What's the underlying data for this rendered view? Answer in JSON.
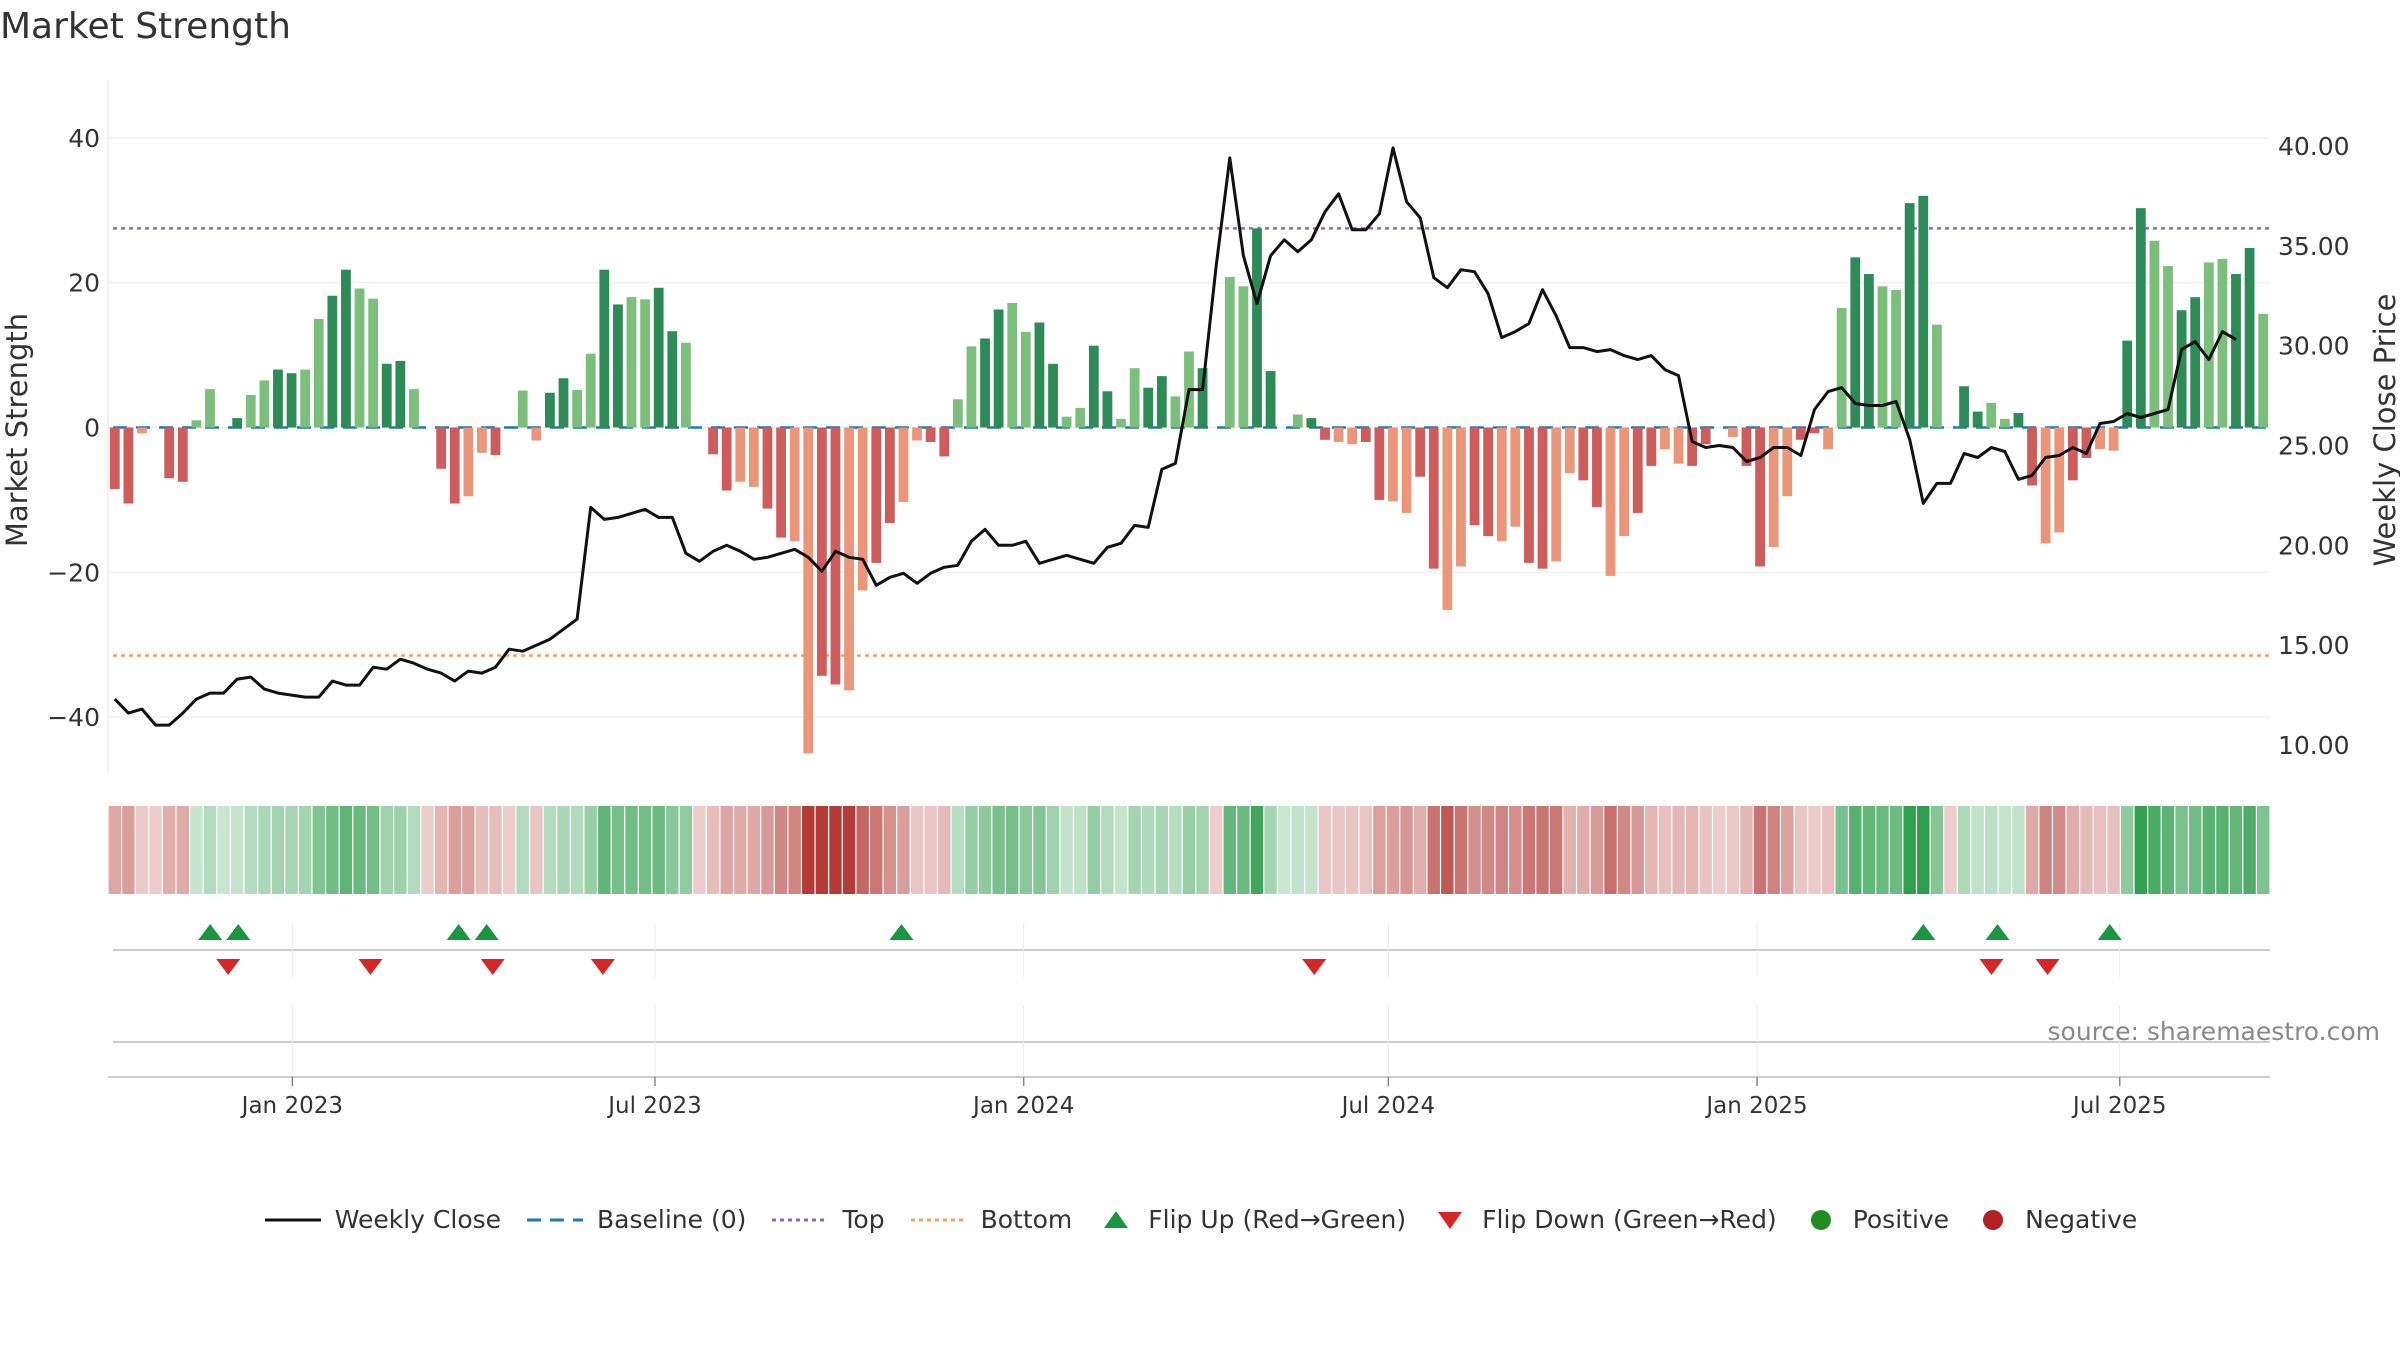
{
  "title": "Market Strength",
  "source": "source: sharemaestro.com",
  "colors": {
    "pos_dark": "#2e8b57",
    "pos_light": "#7cbf7c",
    "neg_dark": "#cd5c5c",
    "neg_light": "#e9967a",
    "price": "#111111",
    "baseline": "#1f77b4",
    "top": "#9467bd",
    "bottom": "#f4a460",
    "flip_up": "#1a9641",
    "flip_down": "#d62728",
    "positive": "#228b22",
    "negative": "#b22222"
  },
  "legend": {
    "weekly_close": "Weekly Close",
    "baseline": "Baseline (0)",
    "top": "Top",
    "bottom": "Bottom",
    "flip_up": "Flip Up (Red→Green)",
    "flip_down": "Flip Down (Green→Red)",
    "positive": "Positive",
    "negative": "Negative"
  },
  "chart_data": {
    "type": "bar",
    "title": "Market Strength",
    "ylabel": "Market Strength",
    "y2label": "Weekly Close Price",
    "ylim": [
      -48,
      48
    ],
    "y2lim": [
      8.5,
      43.3
    ],
    "yticks": [
      "40",
      "20",
      "0",
      "−20",
      "−40"
    ],
    "ytick_values": [
      40,
      20,
      0,
      -20,
      -40
    ],
    "y2ticks": [
      "40.00",
      "35.00",
      "30.00",
      "25.00",
      "20.00",
      "15.00",
      "10.00"
    ],
    "y2tick_values": [
      40,
      35,
      30,
      25,
      20,
      15,
      10
    ],
    "start_date": "2022-10-01",
    "end_date": "2025-09-14",
    "x_ticks": [
      {
        "label": "Jan 2023",
        "date": "2023-01-01"
      },
      {
        "label": "Jul 2023",
        "date": "2023-07-01"
      },
      {
        "label": "Jan 2024",
        "date": "2024-01-01"
      },
      {
        "label": "Jul 2024",
        "date": "2024-07-01"
      },
      {
        "label": "Jan 2025",
        "date": "2025-01-01"
      },
      {
        "label": "Jul 2025",
        "date": "2025-07-01"
      }
    ],
    "top_line": 27.5,
    "bottom_line": -31.5,
    "baseline": 0,
    "strength": [
      -8.5,
      -10.5,
      -0.8,
      -0.3,
      -7,
      -7.5,
      1,
      5.3,
      0.3,
      1.3,
      4.5,
      6.5,
      8,
      7.5,
      8,
      15,
      18.2,
      21.8,
      19.2,
      17.8,
      8.8,
      9.2,
      5.3,
      -0.3,
      -5.7,
      -10.5,
      -9.5,
      -3.5,
      -3.8,
      -0.3,
      5.1,
      -1.8,
      4.8,
      6.8,
      5.2,
      10.2,
      21.8,
      17,
      18,
      17.7,
      19.3,
      13.3,
      11.7,
      -0.3,
      -3.7,
      -8.7,
      -7.5,
      -8.2,
      -11.2,
      -15.2,
      -15.7,
      -45,
      -34.3,
      -35.5,
      -36.3,
      -22.5,
      -18.7,
      -13.2,
      -10.3,
      -1.8,
      -2,
      -4,
      3.9,
      11.2,
      12.3,
      16.3,
      17.2,
      13.2,
      14.5,
      8.8,
      1.5,
      2.7,
      11.3,
      5,
      1.2,
      8.2,
      5.5,
      7.1,
      4.3,
      10.5,
      8.2,
      -0.3,
      20.8,
      19.5,
      27.5,
      7.8,
      0.3,
      1.8,
      1.3,
      -1.7,
      -2,
      -2.3,
      -2,
      -10,
      -10.2,
      -11.8,
      -6.8,
      -19.5,
      -25.2,
      -19.2,
      -13.5,
      -15,
      -15.7,
      -13.7,
      -18.7,
      -19.5,
      -18.5,
      -6.3,
      -7.3,
      -11,
      -20.5,
      -15,
      -11.8,
      -5.3,
      -3,
      -5,
      -5.3,
      -2.3,
      -0.3,
      -1.3,
      -5.3,
      -19.2,
      -16.5,
      -9.5,
      -1.7,
      -0.8,
      -3,
      16.5,
      23.5,
      21.2,
      19.5,
      19,
      31,
      32,
      14.2,
      -0.3,
      5.7,
      2.2,
      3.4,
      1.2,
      2,
      -8,
      -16,
      -14.5,
      -7.3,
      -4.2,
      -3,
      -3.2,
      12,
      30.3,
      25.8,
      22.3,
      16.2,
      18,
      22.8,
      23.3,
      21.2,
      24.8,
      15.7
    ],
    "weekly_close": [
      12.3,
      11.6,
      11.8,
      11,
      11,
      11.6,
      12.3,
      12.6,
      12.6,
      13.3,
      13.4,
      12.8,
      12.6,
      12.5,
      12.4,
      12.4,
      13.2,
      13,
      13,
      13.9,
      13.8,
      14.3,
      14.1,
      13.8,
      13.6,
      13.2,
      13.7,
      13.6,
      13.9,
      14.8,
      14.7,
      15,
      15.3,
      15.8,
      16.3,
      21.9,
      21.3,
      21.4,
      21.6,
      21.8,
      21.4,
      21.4,
      19.6,
      19.2,
      19.7,
      20,
      19.7,
      19.3,
      19.4,
      19.6,
      19.8,
      19.4,
      18.7,
      19.7,
      19.4,
      19.3,
      18,
      18.4,
      18.6,
      18.1,
      18.6,
      18.9,
      19,
      20.2,
      20.8,
      20,
      20,
      20.2,
      19.1,
      19.3,
      19.5,
      19.3,
      19.1,
      19.9,
      20.1,
      21,
      20.9,
      23.8,
      24.1,
      27.8,
      27.8,
      34,
      39.4,
      34.5,
      32.1,
      34.5,
      35.3,
      34.7,
      35.3,
      36.7,
      37.6,
      35.8,
      35.8,
      36.6,
      39.9,
      37.2,
      36.4,
      33.4,
      32.9,
      33.8,
      33.7,
      32.6,
      30.4,
      30.7,
      31.1,
      32.8,
      31.5,
      29.9,
      29.9,
      29.7,
      29.8,
      29.5,
      29.3,
      29.5,
      28.8,
      28.5,
      25.2,
      24.9,
      25,
      24.9,
      24.2,
      24.4,
      24.9,
      24.9,
      24.5,
      26.8,
      27.7,
      27.9,
      27.1,
      27,
      27,
      27.2,
      25.3,
      22.1,
      23.1,
      23.1,
      24.6,
      24.4,
      24.9,
      24.7,
      23.3,
      23.5,
      24.4,
      24.5,
      24.9,
      24.6,
      26.1,
      26.2,
      26.6,
      26.4,
      26.6,
      26.8,
      29.8,
      30.2,
      29.3,
      30.7,
      30.3
    ],
    "flip_up_dates": [
      "2022-11-21",
      "2022-12-05",
      "2023-03-25",
      "2023-04-08",
      "2023-11-01",
      "2025-03-25",
      "2025-05-01",
      "2025-06-26"
    ],
    "flip_down_dates": [
      "2022-11-30",
      "2023-02-09",
      "2023-04-11",
      "2023-06-05",
      "2024-05-25",
      "2025-04-28",
      "2025-05-26"
    ]
  }
}
